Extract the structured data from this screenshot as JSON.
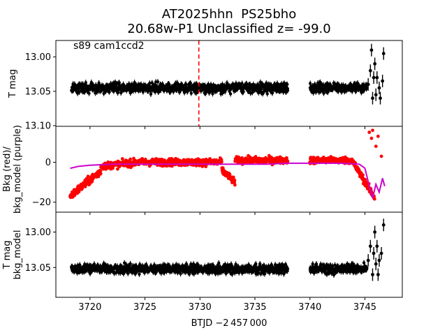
{
  "title": {
    "line1": "AT2025hhn  PS25bho",
    "line2": "20.68w-P1 Unclassified z= -99.0"
  },
  "annotation": "s89 cam1ccd2",
  "colors": {
    "flux": "#000000",
    "bkg": "#ff0000",
    "bkg_model": "#cc00cc",
    "marker": "#ff0000"
  },
  "chart_data": [
    {
      "type": "scatter",
      "panel": "top",
      "ylabel": "T mag",
      "y_inverted": true,
      "ylim": [
        13.101,
        12.976
      ],
      "xlim": [
        3716.9,
        3748.4
      ],
      "yticks": [
        13.0,
        13.05,
        13.1
      ],
      "ytick_labels": [
        "13.00",
        "13.05",
        "13.10"
      ],
      "vertical_line": {
        "x": 3729.9,
        "style": "dashed",
        "color": "red"
      },
      "series": [
        {
          "segments": [
            [
              3718.3,
              3738.0
            ],
            [
              3740.0,
              3745.2
            ]
          ],
          "y_center": 13.045,
          "y_spread": 0.012
        },
        {
          "points": [
            [
              3745.3,
              13.04
            ],
            [
              3745.5,
              13.02
            ],
            [
              3745.7,
              13.06
            ],
            [
              3745.8,
              13.03
            ],
            [
              3746.0,
              13.055
            ],
            [
              3746.1,
              13.03
            ],
            [
              3746.3,
              13.045
            ],
            [
              3746.4,
              13.06
            ],
            [
              3746.6,
              13.035
            ],
            [
              3746.7,
              12.995
            ],
            [
              3745.9,
              13.01
            ],
            [
              3745.6,
              12.99
            ]
          ]
        }
      ]
    },
    {
      "type": "line",
      "panel": "middle",
      "ylabel": "Bkg (red)/\nbkg_model (purple)",
      "ylim": [
        -25,
        18
      ],
      "xlim": [
        3716.9,
        3748.4
      ],
      "yticks": [
        -20,
        0
      ],
      "ytick_labels": [
        "−20",
        "0"
      ],
      "series": [
        {
          "role": "bkg",
          "segments": [
            [
              3718.2,
              3738.0
            ],
            [
              3740.0,
              3745.9
            ]
          ]
        },
        {
          "role": "bkg_model",
          "x": [
            3718.2,
            3719,
            3720,
            3722,
            3725,
            3728,
            3730,
            3733,
            3736,
            3738,
            3740,
            3743,
            3744.5,
            3745.0,
            3745.4,
            3745.7,
            3746.0,
            3746.3,
            3746.6,
            3746.8
          ],
          "y": [
            -3,
            -2,
            -1.5,
            -1,
            -1,
            -1,
            -1,
            -1,
            -1,
            -0.5,
            -0.5,
            -0.5,
            -1,
            -3,
            -12,
            -18,
            -11,
            -15,
            -8,
            -12
          ]
        },
        {
          "role": "outliers",
          "points": [
            [
              3745.4,
              15
            ],
            [
              3745.7,
              16
            ],
            [
              3746.2,
              13
            ],
            [
              3745.6,
              12
            ],
            [
              3746.0,
              8
            ],
            [
              3746.5,
              3
            ]
          ]
        }
      ]
    },
    {
      "type": "scatter",
      "panel": "bottom",
      "ylabel": "T mag\nbkg_model",
      "y_inverted": true,
      "ylim": [
        13.092,
        12.972
      ],
      "xlim": [
        3716.9,
        3748.4
      ],
      "yticks": [
        13.0,
        13.05
      ],
      "ytick_labels": [
        "13.00",
        "13.05"
      ],
      "xticks": [
        3720,
        3725,
        3730,
        3735,
        3740,
        3745
      ],
      "xtick_labels": [
        "3720",
        "3725",
        "3730",
        "3735",
        "3740",
        "3745"
      ],
      "xlabel": "BTJD −2 457 000",
      "series": [
        {
          "segments": [
            [
              3718.3,
              3738.0
            ],
            [
              3740.0,
              3745.2
            ]
          ],
          "y_center": 13.052,
          "y_spread": 0.011
        },
        {
          "points": [
            [
              3745.3,
              13.04
            ],
            [
              3745.5,
              13.02
            ],
            [
              3745.7,
              13.06
            ],
            [
              3745.8,
              13.03
            ],
            [
              3746.0,
              13.045
            ],
            [
              3746.1,
              13.02
            ],
            [
              3746.3,
              13.04
            ],
            [
              3746.5,
              13.03
            ],
            [
              3746.7,
              12.99
            ],
            [
              3745.9,
              13.0
            ],
            [
              3746.2,
              13.06
            ]
          ]
        }
      ]
    }
  ]
}
